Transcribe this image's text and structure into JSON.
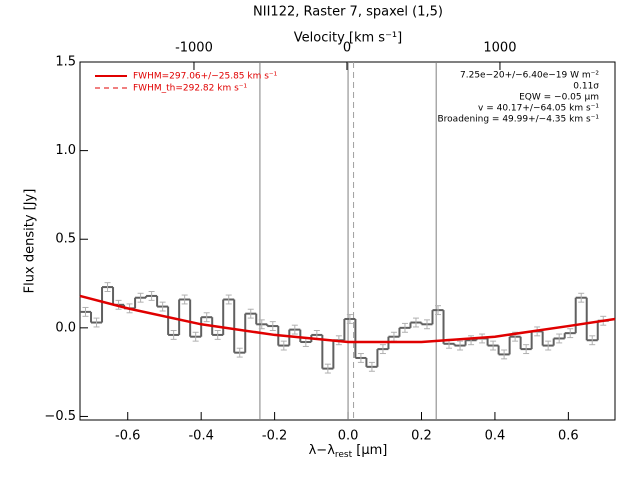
{
  "chart_data": {
    "type": "line",
    "title": "NII122, Raster 7, spaxel (1,5)",
    "xlabel": "λ−λ",
    "xlabel_sub": "rest",
    "xlabel_unit": " [μm]",
    "ylabel": "Flux density [Jy]",
    "x2label": "Velocity [km s⁻¹]",
    "xlim": [
      -0.73,
      0.727
    ],
    "xticks": [
      -0.6,
      -0.4,
      -0.2,
      {
        "value": 0,
        "label": "0.0"
      },
      0.2,
      0.4,
      0.6
    ],
    "x2lim": [
      -1745,
      1752
    ],
    "x2ticks": [
      -1000,
      0,
      1000
    ],
    "ylim": [
      -0.52,
      1.5
    ],
    "yticks": [
      {
        "value": -0.5,
        "label": "−0.5"
      },
      {
        "value": 0,
        "label": "0.0"
      },
      0.5,
      {
        "value": 1,
        "label": "1.0"
      },
      1.5
    ],
    "bin_width": 0.03,
    "error": 0.025,
    "x": [
      -0.715,
      -0.685,
      -0.655,
      -0.625,
      -0.595,
      -0.565,
      -0.535,
      -0.505,
      -0.475,
      -0.445,
      -0.415,
      -0.385,
      -0.355,
      -0.325,
      -0.295,
      -0.265,
      -0.235,
      -0.205,
      -0.175,
      -0.145,
      -0.115,
      -0.085,
      -0.055,
      -0.025,
      0.005,
      0.035,
      0.065,
      0.095,
      0.125,
      0.155,
      0.185,
      0.215,
      0.245,
      0.275,
      0.305,
      0.335,
      0.365,
      0.395,
      0.425,
      0.455,
      0.485,
      0.515,
      0.545,
      0.575,
      0.605,
      0.635,
      0.665,
      0.695
    ],
    "values": [
      0.09,
      0.03,
      0.23,
      0.13,
      0.11,
      0.17,
      0.18,
      0.12,
      -0.04,
      0.16,
      -0.05,
      0.06,
      -0.04,
      0.16,
      -0.14,
      0.08,
      0.02,
      0.01,
      -0.1,
      -0.01,
      -0.08,
      -0.04,
      -0.23,
      -0.07,
      0.05,
      -0.17,
      -0.22,
      -0.12,
      -0.05,
      0.0,
      0.03,
      0.02,
      0.1,
      -0.09,
      -0.1,
      -0.07,
      -0.06,
      -0.1,
      -0.15,
      -0.05,
      -0.12,
      -0.02,
      -0.1,
      -0.06,
      -0.03,
      0.17,
      -0.07,
      0.04
    ],
    "color": "#606060",
    "error_color": "#b0b0b0",
    "fit": {
      "name": "FWHM=297.06+/−25.85 km s⁻¹",
      "color": "#e00000",
      "x": [
        -0.73,
        -0.6,
        -0.4,
        -0.2,
        0,
        0.2,
        0.4,
        0.6,
        0.727
      ],
      "values": [
        0.18,
        0.11,
        0.02,
        -0.04,
        -0.08,
        -0.08,
        -0.05,
        0.01,
        0.05
      ]
    },
    "fwhm_th": {
      "name": "FWHM_th=292.82 km s⁻¹",
      "color": "#e00000",
      "x": 0.015,
      "line_color": "#a0a0a0"
    },
    "vlines": [
      -0.24,
      0,
      0.24
    ],
    "vline_color": "#808080",
    "annotations": [
      "7.25e−20+/−6.40e−19 W m⁻²",
      "0.11σ",
      "EQW = −0.05 μm",
      "v = 40.17+/−64.05 km s⁻¹",
      "Broadening = 49.99+/−4.35 km s⁻¹"
    ]
  }
}
